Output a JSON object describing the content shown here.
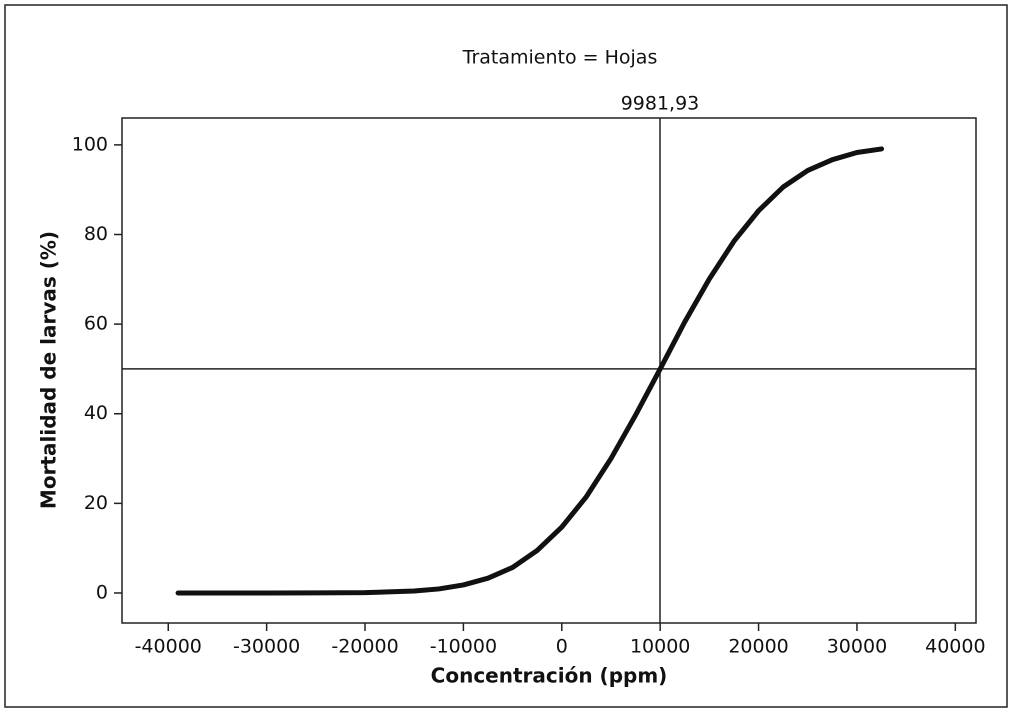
{
  "chart_data": {
    "type": "line",
    "title": "Tratamiento = Hojas",
    "x_label": "Concentración (ppm)",
    "y_label": "Mortalidad de larvas (%)",
    "x": [
      -39000,
      -35000,
      -30000,
      -25000,
      -20000,
      -15000,
      -12500,
      -10000,
      -7500,
      -5000,
      -2500,
      0,
      2500,
      5000,
      7500,
      10000,
      12500,
      15000,
      17500,
      20000,
      22500,
      25000,
      27500,
      30000,
      32500
    ],
    "series": [
      {
        "color": "#111111",
        "values": [
          0,
          0,
          0,
          0.01,
          0.08,
          0.43,
          0.9,
          1.8,
          3.3,
          5.7,
          9.5,
          14.7,
          21.5,
          30.0,
          39.7,
          50.0,
          60.5,
          70.1,
          78.5,
          85.3,
          90.6,
          94.3,
          96.7,
          98.3,
          99.1
        ]
      }
    ],
    "reference_lines": {
      "x": 9981.93,
      "x_label": "9981,93",
      "y": 50
    },
    "xlim": [
      -44700,
      42100
    ],
    "ylim": [
      -6.7,
      106
    ],
    "xticks": [
      -40000,
      -30000,
      -20000,
      -10000,
      0,
      10000,
      20000,
      30000,
      40000
    ],
    "yticks": [
      0,
      20,
      40,
      60,
      80,
      100
    ]
  }
}
